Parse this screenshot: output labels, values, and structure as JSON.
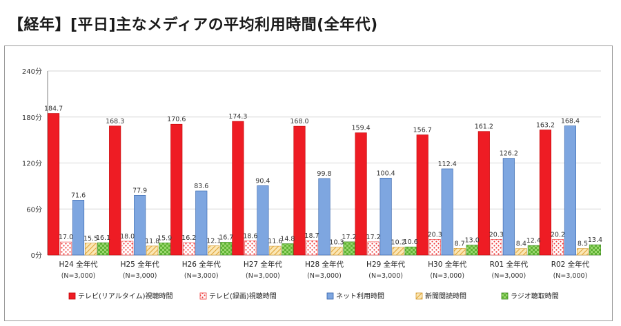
{
  "title": "【経年】[平日]主なメディアの平均利用時間(全年代)",
  "chart_data": {
    "type": "bar",
    "title": "【経年】[平日]主なメディアの平均利用時間(全年代)",
    "ylim": [
      0,
      240
    ],
    "yticks": [
      "0分",
      "60分",
      "120分",
      "180分",
      "240分"
    ],
    "ytick_values": [
      0,
      60,
      120,
      180,
      240
    ],
    "grid": true,
    "legend_position": "bottom",
    "categories": [
      "H24 全年代",
      "H25 全年代",
      "H26 全年代",
      "H27 全年代",
      "H28 全年代",
      "H29 全年代",
      "H30 全年代",
      "R01 全年代",
      "R02 全年代"
    ],
    "category_sublabels": [
      "(N=3,000)",
      "(N=3,000)",
      "(N=3,000)",
      "(N=3,000)",
      "(N=3,000)",
      "(N=3,000)",
      "(N=3,000)",
      "(N=3,000)",
      "(N=3,000)"
    ],
    "series": [
      {
        "name": "テレビ(リアルタイム)視聴時間",
        "color": "#ee1c24",
        "pattern": "solid",
        "values": [
          184.7,
          168.3,
          170.6,
          174.3,
          168.0,
          159.4,
          156.7,
          161.2,
          163.2
        ],
        "labels": [
          "184.7",
          "168.3",
          "170.6",
          "174.3",
          "168.0",
          "159.4",
          "156.7",
          "161.2",
          "163.2"
        ]
      },
      {
        "name": "テレビ(録画)視聴時間",
        "color": "#ff6b6b",
        "pattern": "dots",
        "values": [
          17.0,
          18.0,
          16.2,
          18.6,
          18.7,
          17.2,
          20.3,
          20.3,
          20.2
        ],
        "labels": [
          "17.0",
          "18.0",
          "16.2",
          "18.6",
          "18.7",
          "17.2",
          "20.3",
          "20.3",
          "20.2"
        ]
      },
      {
        "name": "ネット利用時間",
        "color": "#7ea6e0",
        "pattern": "solid",
        "values": [
          71.6,
          77.9,
          83.6,
          90.4,
          99.8,
          100.4,
          112.4,
          126.2,
          168.4
        ],
        "labels": [
          "71.6",
          "77.9",
          "83.6",
          "90.4",
          "99.8",
          "100.4",
          "112.4",
          "126.2",
          "168.4"
        ]
      },
      {
        "name": "新聞閲読時間",
        "color": "#f2c36b",
        "pattern": "hatch",
        "values": [
          15.5,
          11.8,
          12.1,
          11.6,
          10.3,
          10.2,
          8.7,
          8.4,
          8.5
        ],
        "labels": [
          "15.5",
          "11.8",
          "12.1",
          "11.6",
          "10.3",
          "10.2",
          "8.7",
          "8.4",
          "8.5"
        ]
      },
      {
        "name": "ラジオ聴取時間",
        "color": "#72c142",
        "pattern": "checker",
        "values": [
          16.1,
          15.9,
          16.7,
          14.8,
          17.2,
          10.6,
          13.0,
          12.4,
          13.4
        ],
        "labels": [
          "16.1",
          "15.9",
          "16.7",
          "14.8",
          "17.2",
          "10.6",
          "13.0",
          "12.4",
          "13.4"
        ]
      }
    ]
  }
}
